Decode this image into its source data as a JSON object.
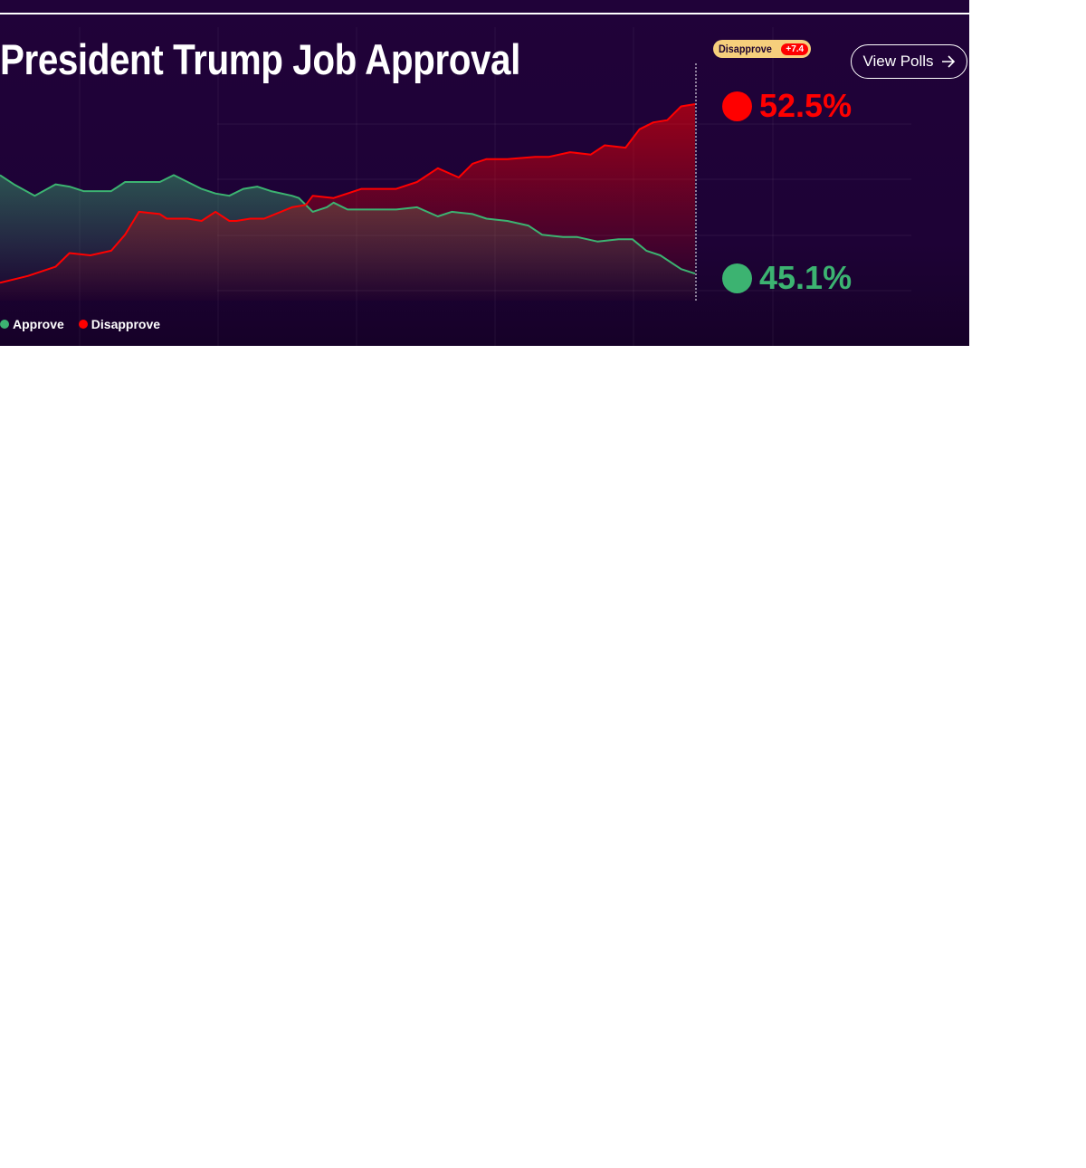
{
  "header": {
    "title": "President Trump Job Approval"
  },
  "badge": {
    "label": "Disapprove",
    "value": "+7.4"
  },
  "view_polls": {
    "label": "View Polls",
    "icon": "arrow-right-icon"
  },
  "colors": {
    "approve": "#3cb371",
    "disapprove": "#ff0000",
    "background": "#200239",
    "badge": "#f6cf7c"
  },
  "chart_data": {
    "type": "line",
    "title": "President Trump Job Approval",
    "xlabel": "",
    "ylabel": "",
    "x_units": "relative time (0 = start, 100 = latest)",
    "ylim": [
      44,
      53
    ],
    "grid": true,
    "legend_position": "bottom-left",
    "series": [
      {
        "name": "Approve",
        "latest": "45.1%",
        "color": "#3cb371",
        "x": [
          0,
          2,
          5,
          8,
          10,
          12,
          14,
          16,
          18,
          20,
          23,
          25,
          27,
          29,
          31,
          33,
          35,
          37,
          39,
          42,
          43,
          45,
          47,
          48,
          50,
          52,
          57,
          60,
          63,
          65,
          68,
          70,
          73,
          76,
          78,
          81,
          83,
          86,
          89,
          91,
          93,
          95,
          98,
          100
        ],
        "y": [
          49.4,
          49.0,
          48.5,
          49.0,
          48.9,
          48.7,
          48.7,
          48.7,
          49.1,
          49.1,
          49.1,
          49.4,
          49.1,
          48.8,
          48.6,
          48.5,
          48.8,
          48.9,
          48.7,
          48.5,
          48.4,
          47.8,
          48.0,
          48.2,
          47.9,
          47.9,
          47.9,
          48.0,
          47.6,
          47.8,
          47.7,
          47.5,
          47.4,
          47.2,
          46.8,
          46.7,
          46.7,
          46.5,
          46.6,
          46.6,
          46.1,
          45.9,
          45.3,
          45.1
        ]
      },
      {
        "name": "Disapprove",
        "latest": "52.5%",
        "color": "#ff0000",
        "x": [
          0,
          4,
          8,
          10,
          13,
          16,
          18,
          20,
          23,
          24,
          27,
          29,
          31,
          33,
          34,
          36,
          38,
          42,
          44,
          45,
          48,
          49,
          52,
          57,
          60,
          63,
          66,
          68,
          70,
          73,
          77,
          79,
          82,
          85,
          87,
          90,
          92,
          94,
          96,
          98,
          100
        ],
        "y": [
          44.7,
          45.0,
          45.4,
          46.0,
          45.9,
          46.1,
          46.8,
          47.8,
          47.7,
          47.5,
          47.5,
          47.4,
          47.8,
          47.4,
          47.4,
          47.5,
          47.5,
          48.0,
          48.1,
          48.5,
          48.4,
          48.5,
          48.8,
          48.8,
          49.1,
          49.7,
          49.3,
          49.9,
          50.1,
          50.1,
          50.2,
          50.2,
          50.4,
          50.3,
          50.7,
          50.6,
          51.4,
          51.7,
          51.8,
          52.4,
          52.5
        ]
      }
    ]
  }
}
